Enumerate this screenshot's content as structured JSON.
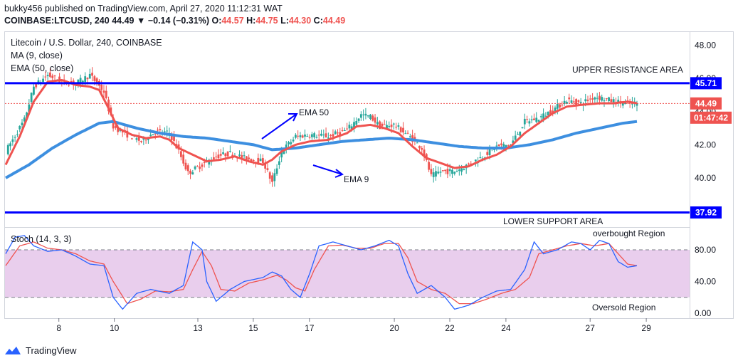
{
  "header": {
    "line1": "bukky456 published on TradingView.com, April 27, 2020 11:12:31 WAT",
    "symbol_line": "COINBASE:LTCUSD, 240",
    "last": "44.49",
    "change": "▼ −0.14 (−0.31%)",
    "o_label": "O:",
    "o": "44.57",
    "h_label": "H:",
    "h": "44.75",
    "l_label": "L:",
    "l": "44.30",
    "c_label": "C:",
    "c": "44.49"
  },
  "legend": {
    "title": "Litecoin / U.S. Dollar, 240, COINBASE",
    "ma": "MA (9, close)",
    "ema": "EMA (50, close)"
  },
  "annotations": {
    "upper": "UPPER RESISTANCE AREA",
    "lower": "LOWER SUPPORT AREA",
    "ema50": "EMA 50",
    "ema9": "EMA 9",
    "overbought": "overbought Region",
    "oversold": "Oversold Region"
  },
  "price_tags": {
    "upper": "45.71",
    "current": "44.49",
    "countdown": "01:47:42",
    "lower": "37.92"
  },
  "stoch_label": "Stoch (14, 3, 3)",
  "footer": {
    "brand": "TradingView"
  },
  "colors": {
    "up": "#26a69a",
    "down": "#ef5350",
    "ema9": "#ef5350",
    "ema50": "#3d8fe0",
    "lines": "#0000ff",
    "stoch_k": "#2962ff",
    "stoch_d": "#ef5350",
    "band": "#e1bee7"
  },
  "chart_data": [
    {
      "type": "candlestick",
      "title": "Litecoin / U.S. Dollar, 240, COINBASE",
      "x_ticks": [
        "8",
        "10",
        "13",
        "15",
        "17",
        "20",
        "22",
        "24",
        "27",
        "29"
      ],
      "y_ticks": [
        "48.00",
        "46.00",
        "44.00",
        "42.00",
        "40.00"
      ],
      "ylim": [
        37.5,
        48.6
      ],
      "horizontal_lines": [
        45.71,
        37.92
      ],
      "ema9_anchors": [
        [
          0,
          40.8
        ],
        [
          6,
          42.5
        ],
        [
          12,
          44.6
        ],
        [
          18,
          45.8
        ],
        [
          24,
          45.9
        ],
        [
          30,
          45.6
        ],
        [
          36,
          45.5
        ],
        [
          40,
          45.3
        ],
        [
          44,
          44.2
        ],
        [
          48,
          43.0
        ],
        [
          54,
          42.6
        ],
        [
          60,
          42.4
        ],
        [
          66,
          42.5
        ],
        [
          70,
          42.3
        ],
        [
          74,
          41.8
        ],
        [
          80,
          41.4
        ],
        [
          86,
          41.0
        ],
        [
          92,
          41.1
        ],
        [
          98,
          41.3
        ],
        [
          104,
          41.0
        ],
        [
          110,
          40.8
        ],
        [
          114,
          41.1
        ],
        [
          118,
          41.6
        ],
        [
          124,
          42.0
        ],
        [
          130,
          42.2
        ],
        [
          138,
          42.3
        ],
        [
          146,
          42.7
        ],
        [
          150,
          43.1
        ],
        [
          156,
          43.2
        ],
        [
          162,
          43.0
        ],
        [
          168,
          42.7
        ],
        [
          174,
          41.9
        ],
        [
          180,
          41.2
        ],
        [
          186,
          40.9
        ],
        [
          192,
          40.6
        ],
        [
          198,
          40.7
        ],
        [
          204,
          41.1
        ],
        [
          210,
          41.4
        ],
        [
          216,
          41.9
        ],
        [
          222,
          42.7
        ],
        [
          228,
          43.3
        ],
        [
          234,
          43.9
        ],
        [
          240,
          44.3
        ],
        [
          246,
          44.4
        ],
        [
          254,
          44.5
        ],
        [
          260,
          44.5
        ],
        [
          266,
          44.6
        ],
        [
          270,
          44.5
        ]
      ],
      "ema50_anchors": [
        [
          0,
          40.0
        ],
        [
          10,
          40.8
        ],
        [
          20,
          41.8
        ],
        [
          30,
          42.6
        ],
        [
          40,
          43.3
        ],
        [
          46,
          43.4
        ],
        [
          56,
          43.0
        ],
        [
          66,
          42.7
        ],
        [
          76,
          42.5
        ],
        [
          86,
          42.4
        ],
        [
          96,
          42.2
        ],
        [
          106,
          42.0
        ],
        [
          114,
          41.7
        ],
        [
          124,
          41.8
        ],
        [
          134,
          42.0
        ],
        [
          144,
          42.2
        ],
        [
          154,
          42.3
        ],
        [
          164,
          42.4
        ],
        [
          174,
          42.3
        ],
        [
          184,
          42.1
        ],
        [
          194,
          41.9
        ],
        [
          204,
          41.8
        ],
        [
          214,
          41.8
        ],
        [
          224,
          42.0
        ],
        [
          234,
          42.3
        ],
        [
          244,
          42.7
        ],
        [
          254,
          43.0
        ],
        [
          264,
          43.3
        ],
        [
          270,
          43.4
        ]
      ],
      "price_anchors": [
        [
          0,
          41.6
        ],
        [
          8,
          43.5
        ],
        [
          12,
          45.5
        ],
        [
          18,
          46.2
        ],
        [
          24,
          45.8
        ],
        [
          30,
          45.7
        ],
        [
          36,
          46.2
        ],
        [
          42,
          45.2
        ],
        [
          46,
          43.1
        ],
        [
          52,
          42.6
        ],
        [
          58,
          42.2
        ],
        [
          64,
          42.8
        ],
        [
          70,
          42.7
        ],
        [
          74,
          41.6
        ],
        [
          78,
          40.3
        ],
        [
          84,
          40.8
        ],
        [
          90,
          41.3
        ],
        [
          96,
          41.5
        ],
        [
          102,
          41.2
        ],
        [
          110,
          41.0
        ],
        [
          114,
          39.7
        ],
        [
          118,
          41.6
        ],
        [
          124,
          42.5
        ],
        [
          130,
          42.6
        ],
        [
          138,
          42.5
        ],
        [
          146,
          42.9
        ],
        [
          152,
          43.8
        ],
        [
          156,
          43.7
        ],
        [
          160,
          43.1
        ],
        [
          166,
          43.2
        ],
        [
          172,
          42.6
        ],
        [
          178,
          41.8
        ],
        [
          182,
          40.1
        ],
        [
          186,
          40.4
        ],
        [
          192,
          40.4
        ],
        [
          198,
          40.8
        ],
        [
          204,
          41.3
        ],
        [
          210,
          41.9
        ],
        [
          216,
          42.0
        ],
        [
          222,
          43.4
        ],
        [
          228,
          43.6
        ],
        [
          234,
          44.1
        ],
        [
          240,
          44.7
        ],
        [
          246,
          44.5
        ],
        [
          252,
          44.9
        ],
        [
          258,
          44.7
        ],
        [
          264,
          44.5
        ],
        [
          270,
          44.49
        ]
      ]
    },
    {
      "type": "line",
      "title": "Stoch (14, 3, 3)",
      "x_ticks": [
        "8",
        "10",
        "13",
        "15",
        "17",
        "20",
        "22",
        "24",
        "27",
        "29"
      ],
      "y_ticks": [
        "80.00",
        "40.00",
        "0.00"
      ],
      "ylim": [
        0,
        100
      ],
      "band": [
        20,
        80
      ],
      "series": [
        {
          "name": "K",
          "anchors": [
            [
              0,
              75
            ],
            [
              4,
              96
            ],
            [
              8,
              98
            ],
            [
              12,
              85
            ],
            [
              18,
              78
            ],
            [
              24,
              80
            ],
            [
              30,
              72
            ],
            [
              36,
              62
            ],
            [
              42,
              60
            ],
            [
              46,
              20
            ],
            [
              50,
              5
            ],
            [
              56,
              25
            ],
            [
              62,
              30
            ],
            [
              70,
              25
            ],
            [
              76,
              35
            ],
            [
              80,
              90
            ],
            [
              84,
              80
            ],
            [
              86,
              40
            ],
            [
              90,
              15
            ],
            [
              96,
              30
            ],
            [
              102,
              40
            ],
            [
              110,
              45
            ],
            [
              114,
              52
            ],
            [
              118,
              47
            ],
            [
              122,
              30
            ],
            [
              126,
              20
            ],
            [
              130,
              50
            ],
            [
              134,
              85
            ],
            [
              140,
              90
            ],
            [
              146,
              85
            ],
            [
              152,
              80
            ],
            [
              158,
              85
            ],
            [
              164,
              92
            ],
            [
              168,
              85
            ],
            [
              172,
              50
            ],
            [
              176,
              25
            ],
            [
              182,
              35
            ],
            [
              188,
              20
            ],
            [
              192,
              5
            ],
            [
              198,
              10
            ],
            [
              204,
              20
            ],
            [
              210,
              28
            ],
            [
              216,
              30
            ],
            [
              222,
              55
            ],
            [
              226,
              90
            ],
            [
              230,
              75
            ],
            [
              236,
              80
            ],
            [
              242,
              90
            ],
            [
              246,
              88
            ],
            [
              250,
              80
            ],
            [
              254,
              92
            ],
            [
              258,
              88
            ],
            [
              262,
              65
            ],
            [
              266,
              58
            ],
            [
              270,
              60
            ]
          ]
        },
        {
          "name": "D",
          "anchors": [
            [
              0,
              60
            ],
            [
              6,
              85
            ],
            [
              12,
              90
            ],
            [
              18,
              82
            ],
            [
              24,
              80
            ],
            [
              30,
              75
            ],
            [
              36,
              66
            ],
            [
              42,
              62
            ],
            [
              46,
              40
            ],
            [
              52,
              12
            ],
            [
              58,
              18
            ],
            [
              64,
              28
            ],
            [
              70,
              27
            ],
            [
              76,
              30
            ],
            [
              80,
              55
            ],
            [
              84,
              78
            ],
            [
              88,
              60
            ],
            [
              92,
              30
            ],
            [
              98,
              28
            ],
            [
              104,
              38
            ],
            [
              110,
              42
            ],
            [
              116,
              48
            ],
            [
              120,
              42
            ],
            [
              124,
              32
            ],
            [
              128,
              28
            ],
            [
              132,
              55
            ],
            [
              138,
              85
            ],
            [
              144,
              86
            ],
            [
              150,
              82
            ],
            [
              156,
              82
            ],
            [
              162,
              88
            ],
            [
              168,
              88
            ],
            [
              172,
              70
            ],
            [
              176,
              40
            ],
            [
              182,
              30
            ],
            [
              188,
              25
            ],
            [
              194,
              12
            ],
            [
              200,
              12
            ],
            [
              206,
              18
            ],
            [
              212,
              25
            ],
            [
              218,
              30
            ],
            [
              224,
              45
            ],
            [
              228,
              75
            ],
            [
              234,
              80
            ],
            [
              240,
              85
            ],
            [
              246,
              88
            ],
            [
              252,
              85
            ],
            [
              258,
              88
            ],
            [
              262,
              75
            ],
            [
              266,
              62
            ],
            [
              270,
              60
            ]
          ]
        }
      ]
    }
  ]
}
